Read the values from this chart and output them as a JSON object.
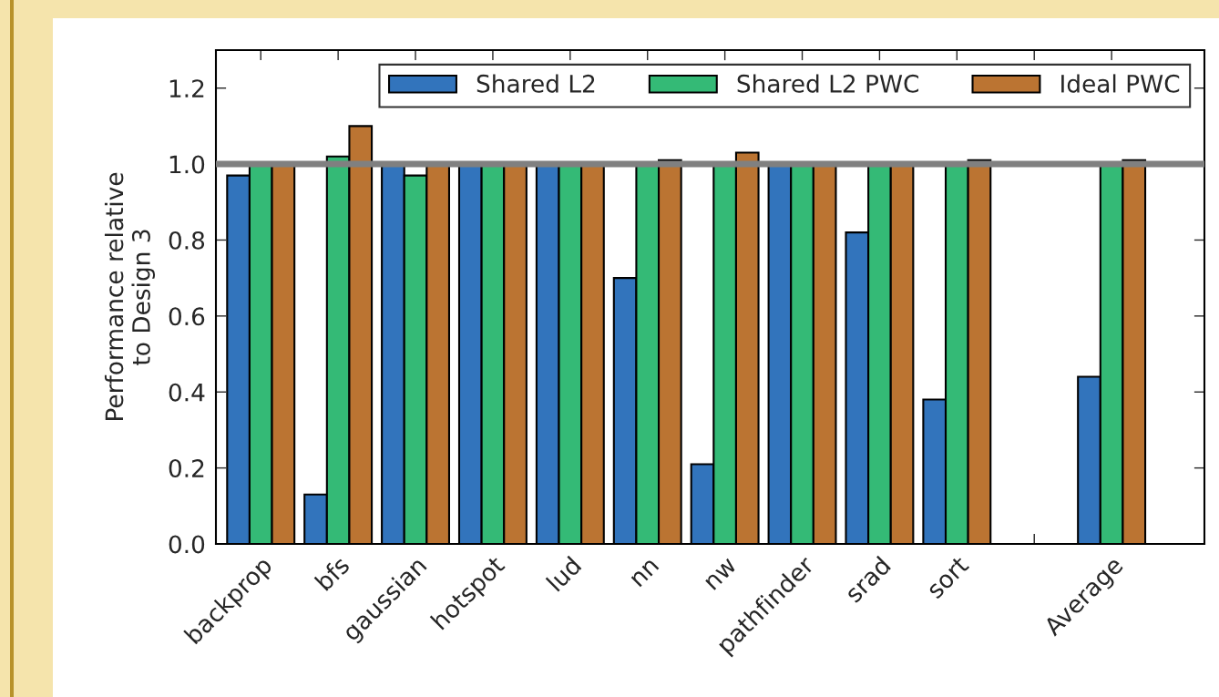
{
  "chart_data": {
    "type": "bar",
    "ylabel": "Performance relative\nto Design 3",
    "categories": [
      "backprop",
      "bfs",
      "gaussian",
      "hotspot",
      "lud",
      "nn",
      "nw",
      "pathfinder",
      "srad",
      "sort",
      null,
      "Average"
    ],
    "series": [
      {
        "name": "Shared L2",
        "color": "#3274bc",
        "values": [
          0.97,
          0.13,
          1.0,
          1.0,
          1.0,
          0.7,
          0.21,
          1.0,
          0.82,
          0.38,
          null,
          0.44
        ]
      },
      {
        "name": "Shared L2 PWC",
        "color": "#34ba76",
        "values": [
          1.0,
          1.02,
          0.97,
          1.0,
          1.0,
          1.0,
          1.0,
          1.0,
          1.0,
          1.0,
          null,
          1.0
        ]
      },
      {
        "name": "Ideal PWC",
        "color": "#bb7432",
        "values": [
          1.0,
          1.1,
          1.0,
          1.0,
          1.0,
          1.01,
          1.03,
          1.0,
          1.0,
          1.01,
          null,
          1.01
        ]
      }
    ],
    "ylim": [
      0,
      1.3
    ],
    "yticks": [
      {
        "value": 0,
        "label": "0.0"
      },
      {
        "value": 0.2,
        "label": "0.2"
      },
      {
        "value": 0.4,
        "label": "0.4"
      },
      {
        "value": 0.6,
        "label": "0.6"
      },
      {
        "value": 0.8,
        "label": "0.8"
      },
      {
        "value": 1.0,
        "label": "1.0"
      },
      {
        "value": 1.2,
        "label": "1.2"
      }
    ],
    "ref_lines": [
      {
        "axis": "y",
        "value": 1.0,
        "color": "#808080"
      }
    ],
    "legend": "top right",
    "grid": false
  }
}
